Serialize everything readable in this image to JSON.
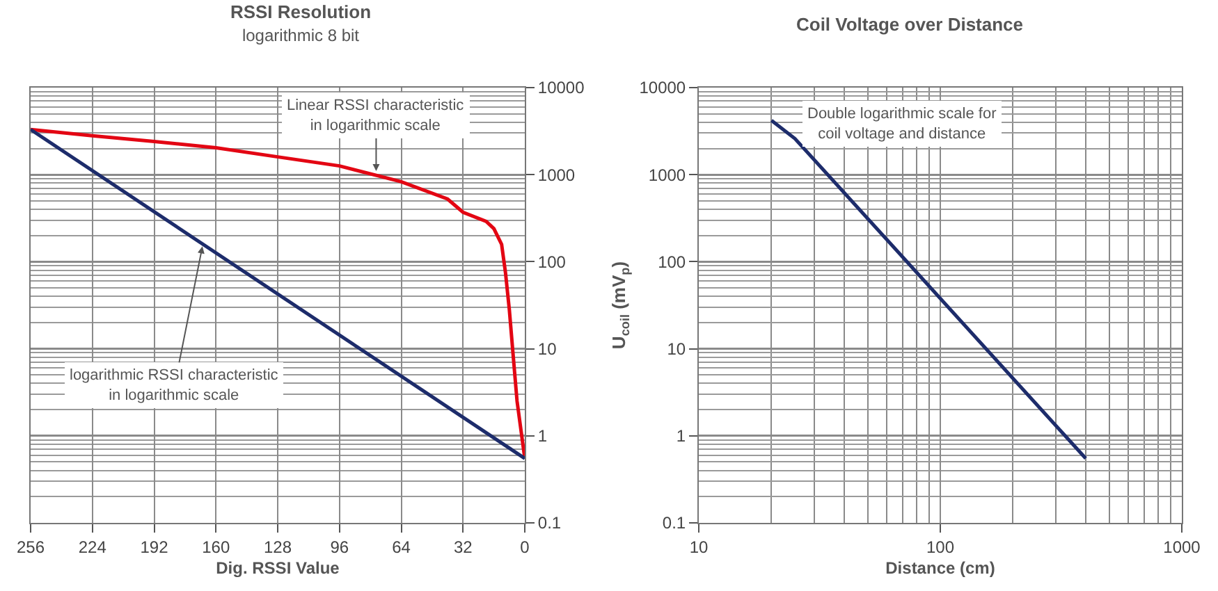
{
  "chart_data": [
    {
      "type": "line",
      "title": "RSSI Resolution",
      "subtitle": "logarithmic 8 bit",
      "xlabel": "Dig. RSSI Value",
      "log": "y",
      "grid": true,
      "marker": "none",
      "line_style": "solid",
      "xlim": [
        256,
        0
      ],
      "xticks": [
        256,
        224,
        192,
        160,
        128,
        96,
        64,
        32,
        0
      ],
      "ylim": [
        0.1,
        10000
      ],
      "yticks": [
        0.1,
        1,
        10,
        100,
        1000,
        10000
      ],
      "series": [
        {
          "color": "#e30613",
          "x": [
            256,
            224,
            192,
            160,
            128,
            96,
            64,
            40,
            32,
            20,
            16,
            12,
            10,
            8,
            6,
            4,
            0
          ],
          "values": [
            3300,
            2800,
            2400,
            2040,
            1600,
            1260,
            830,
            525,
            370,
            290,
            240,
            158,
            75,
            28,
            8.3,
            2.5,
            0.55
          ]
        },
        {
          "color": "#1d2c6b",
          "x": [
            256,
            0
          ],
          "values": [
            3300,
            0.55
          ]
        }
      ],
      "annotations": [
        {
          "text": "Linear RSSI characteristic\nin logarithmic scale",
          "x": 77,
          "y": 1100
        },
        {
          "text": "logarithmic RSSI characteristic\nin logarithmic scale",
          "x": 167,
          "y": 150
        }
      ]
    },
    {
      "type": "line",
      "title": "Coil Voltage over Distance",
      "xlabel": "Distance (cm)",
      "ylabel": "U$_{coil}$ (mV$_{p}$)",
      "log": "xy",
      "grid": true,
      "marker": "none",
      "line_style": "solid",
      "xlim": [
        10,
        1000
      ],
      "xticks": [
        10,
        100,
        1000
      ],
      "ylim": [
        0.1,
        10000
      ],
      "yticks": [
        0.1,
        1,
        10,
        100,
        1000,
        10000
      ],
      "series": [
        {
          "color": "#1d2c6b",
          "x": [
            20,
            25,
            400
          ],
          "values": [
            4200,
            2600,
            0.55
          ]
        }
      ],
      "annotations": [
        "Double logarithmic scale for\ncoil voltage and distance"
      ]
    }
  ]
}
